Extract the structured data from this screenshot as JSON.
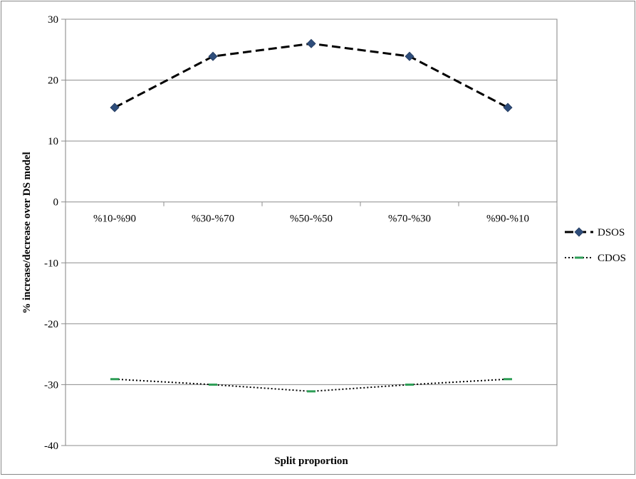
{
  "chart_data": {
    "type": "line",
    "categories": [
      "%10-%90",
      "%30-%70",
      "%50-%50",
      "%70-%30",
      "%90-%10"
    ],
    "series": [
      {
        "name": "DSOS",
        "values": [
          15.5,
          23.9,
          26.0,
          23.9,
          15.5
        ],
        "color": "#000000",
        "marker_color": "#2e4d7b",
        "line_style": "dashed",
        "marker": "diamond"
      },
      {
        "name": "CDOS",
        "values": [
          -29.1,
          -30.0,
          -31.1,
          -30.0,
          -29.1
        ],
        "color": "#000000",
        "marker_color": "#2e9e57",
        "line_style": "dotted",
        "marker": "dash"
      }
    ],
    "title": "",
    "xlabel": "Split proportion",
    "ylabel": "% increase/decrease over DS model",
    "ylim": [
      -40,
      30
    ],
    "yticks": [
      30,
      20,
      10,
      0,
      -10,
      -20,
      -30,
      -40
    ],
    "grid": true,
    "legend_position": "right"
  }
}
